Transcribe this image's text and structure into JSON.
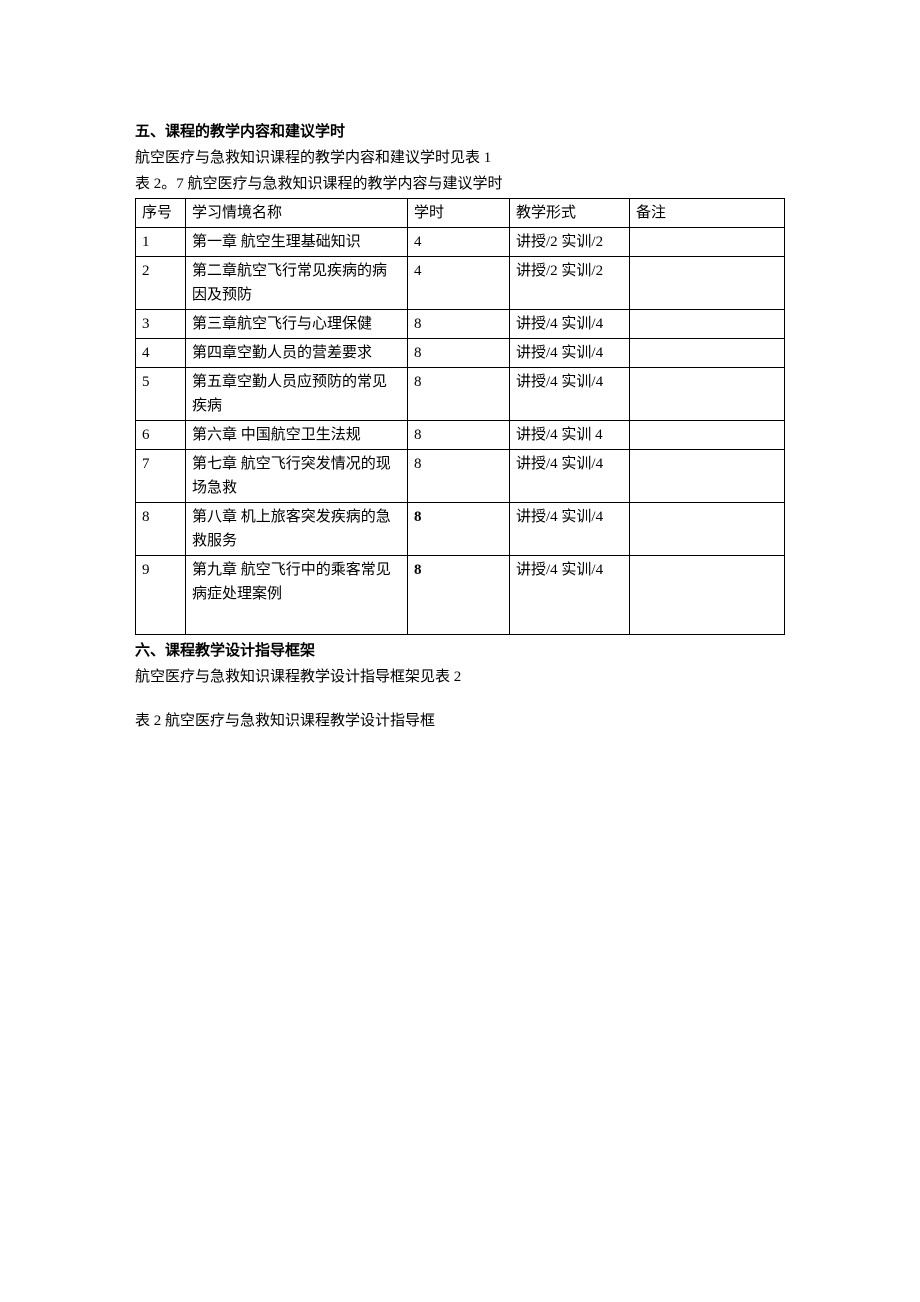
{
  "section5": {
    "heading": "五、课程的教学内容和建议学时",
    "intro": "航空医疗与急救知识课程的教学内容和建议学时见表 1",
    "caption": "表 2。7   航空医疗与急救知识课程的教学内容与建议学时"
  },
  "table": {
    "headers": {
      "seq": "序号",
      "name": "学习情境名称",
      "hours": "学时",
      "form": "教学形式",
      "remark": "备注"
    },
    "rows": [
      {
        "seq": "1",
        "name": "第一章  航空生理基础知识",
        "hours": "4",
        "form": "讲授/2 实训/2",
        "remark": "",
        "bold_hours": false
      },
      {
        "seq": "2",
        "name": "第二章航空飞行常见疾病的病因及预防",
        "hours": "4",
        "form": "讲授/2 实训/2",
        "remark": "",
        "bold_hours": false
      },
      {
        "seq": "3",
        "name": "第三章航空飞行与心理保健",
        "hours": "8",
        "form": "讲授/4 实训/4",
        "remark": "",
        "bold_hours": false
      },
      {
        "seq": "4",
        "name": "第四章空勤人员的营差要求",
        "hours": "8",
        "form": "讲授/4 实训/4",
        "remark": "",
        "bold_hours": false
      },
      {
        "seq": "5",
        "name": "第五章空勤人员应预防的常见疾病",
        "hours": "8",
        "form": "讲授/4 实训/4",
        "remark": "",
        "bold_hours": false
      },
      {
        "seq": "6",
        "name": "第六章  中国航空卫生法规",
        "hours": "8",
        "form": "讲授/4 实训 4",
        "remark": "",
        "bold_hours": false
      },
      {
        "seq": "7",
        "name": "第七章  航空飞行突发情况的现场急救",
        "hours": "8",
        "form": "讲授/4 实训/4",
        "remark": "",
        "bold_hours": false
      },
      {
        "seq": "8",
        "name": "第八章  机上旅客突发疾病的急救服务",
        "hours": "8",
        "form": "讲授/4 实训/4",
        "remark": "",
        "bold_hours": true
      },
      {
        "seq": "9",
        "name": "第九章  航空飞行中的乘客常见病症处理案例",
        "hours": "8",
        "form": "讲授/4 实训/4",
        "remark": "",
        "bold_hours": true,
        "extra_height": true
      }
    ]
  },
  "section6": {
    "heading": "六、课程教学设计指导框架",
    "intro": "航空医疗与急救知识课程教学设计指导框架见表 2",
    "caption": "表 2 航空医疗与急救知识课程教学设计指导框"
  }
}
